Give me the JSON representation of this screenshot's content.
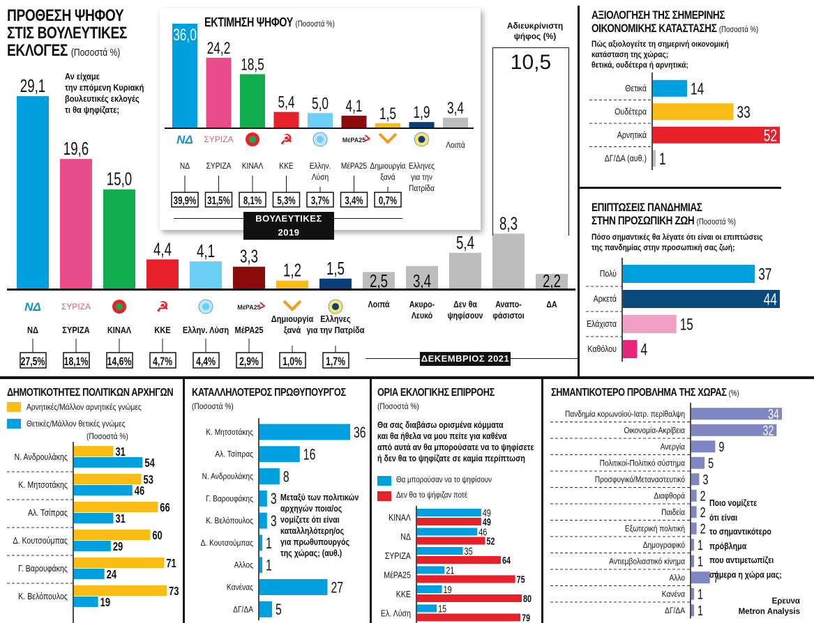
{
  "colors": {
    "nd": "#00a0e0",
    "syriza": "#ea4b8b",
    "kinal": "#10ad4f",
    "kke": "#e8202a",
    "ellyse": "#6ccff6",
    "mera25": "#8b0b0b",
    "dimiourgia": "#fcbc16",
    "ellines": "#0a3d7a",
    "grey": "#bdbdbd",
    "yellow": "#fcbc16",
    "blue": "#00a0e0",
    "red": "#e8202a",
    "darkblue": "#0a4a7a",
    "pink": "#f29fc5",
    "magenta": "#e8247f",
    "lavender": "#7f86c4"
  },
  "main": {
    "title_lines": [
      "ΠΡΟΘΕΣΗ ΨΗΦΟΥ",
      "ΣΤΙΣ ΒΟΥΛΕΥΤΙΚΕΣ",
      "ΕΚΛΟΓΕΣ"
    ],
    "unit": "(Ποσοστά %)",
    "question_lines": [
      "Αν είχαμε",
      "την επόμενη Κυριακή",
      "βουλευτικές εκλογές",
      "τι θα ψηφίζατε;"
    ],
    "period_tag": "ΔΕΚΕΜΒΡΙΟΣ 2021"
  },
  "estimate": {
    "title": "ΕΚΤΙΜΗΣΗ ΨΗΦΟΥ",
    "unit": "(Ποσοστά %)",
    "tag": "ΒΟΥΛΕΥΤΙΚΕΣ 2019"
  },
  "undecided": {
    "title_lines": [
      "Αδιευκρίνιστη",
      "ψήφος (%)"
    ],
    "value": "10,5"
  },
  "economy": {
    "title_lines": [
      "ΑΞΙΟΛΟΓΗΣΗ ΤΗΣ ΣΗΜΕΡΙΝΗΣ",
      "ΟΙΚΟΝΟΜΙΚΗΣ ΚΑΤΑΣΤΑΣΗΣ"
    ],
    "unit": "(Ποσοστά %)",
    "question_lines": [
      "Πώς αξιολογείτε τη σημερινή οικονομική",
      "κατάσταση της χώρας;",
      "θετικά, ουδέτερα ή αρνητικά;"
    ]
  },
  "pandemic": {
    "title_lines": [
      "ΕΠΙΠΤΩΣΕΙΣ ΠΑΝΔΗΜΙΑΣ",
      "ΣΤΗΝ ΠΡΟΣΩΠΙΚΗ ΖΩΗ"
    ],
    "unit": "(Ποσοστά %)",
    "question_lines": [
      "Πόσο σημαντικές θα λέγατε ότι είναι οι επιπτώσεις",
      "της πανδημίας στην προσωπική σας ζωή;"
    ]
  },
  "leaders": {
    "title": "ΔΗΜΟΤΙΚΟΤΗΤΕΣ ΠΟΛΙΤΙΚΩΝ ΑΡΧΗΓΩΝ",
    "legend": [
      "Αρνητικές/Μάλλον αρνητικές γνώμες",
      "Θετικές/Μάλλον θετικές γνώμες"
    ],
    "unit": "(Ποσοστά %)"
  },
  "pm": {
    "title": "ΚΑΤΑΛΛΗΛΟΤΕΡΟΣ ΠΡΩΘΥΠΟΥΡΓΟΣ",
    "unit": "(Ποσοστά %)",
    "question_lines": [
      "Μεταξύ των πολιτικών",
      "αρχηγών ποια/ος",
      "νομίζετε ότι είναι",
      "καταλληλότερη/ος",
      "για πρωθυπουργός",
      "της χώρας; (αυθ.)"
    ]
  },
  "limits": {
    "title": "ΟΡΙΑ ΕΚΛΟΓΙΚΗΣ ΕΠΙΡΡΟΗΣ",
    "unit": "(Ποσοστά %)",
    "question_lines": [
      "Θα σας διαβάσω ορισμένα κόμματα",
      "και θα ήθελα να μου πείτε για καθένα",
      "από αυτά αν θα μπορούσατε να το ψηφίσετε",
      "ή δεν θα το ψηφίζατε σε καμία περίπτωση"
    ],
    "legend": [
      "Θα μπορούσαν να το ψηφίσουν",
      "Δεν θα το ψήφιζαν ποτέ"
    ]
  },
  "problem": {
    "title": "ΣΗΜΑΝΤΙΚΟΤΕΡΟ ΠΡΟΒΛΗΜΑ ΤΗΣ ΧΩΡΑΣ",
    "unit": "(%)",
    "question_lines": [
      "Ποιο νομίζετε",
      "ότι είναι",
      "το σημαντικότερο",
      "πρόβλημα",
      "που αντιμετωπίζει",
      "σήμερα η χώρα μας;"
    ],
    "source_lines": [
      "Ερευνα",
      "Metron Analysis"
    ]
  },
  "chart_data": [
    {
      "id": "vote-intention",
      "type": "bar",
      "title": "ΠΡΟΘΕΣΗ ΨΗΦΟΥ ΣΤΙΣ ΒΟΥΛΕΥΤΙΚΕΣ ΕΚΛΟΓΕΣ (Ποσοστά %)",
      "categories": [
        "ΝΔ",
        "ΣΥΡΙΖΑ",
        "ΚΙΝΑΛ",
        "ΚΚΕ",
        "Ελλην. Λύση",
        "ΜέΡΑ25",
        "Δημιουργία ξανά",
        "Ελληνες για την Πατρίδα",
        "Λοιπά",
        "Ακυρο-Λευκό",
        "Δεν θα ψηφίσουν",
        "Αναποφάσιστοι",
        "ΔΑ"
      ],
      "values": [
        29.1,
        19.6,
        15.0,
        4.4,
        4.1,
        3.3,
        1.2,
        1.5,
        2.5,
        3.4,
        5.4,
        8.3,
        2.2
      ],
      "value_labels": [
        "29,1",
        "19,6",
        "15,0",
        "4,4",
        "4,1",
        "3,3",
        "1,2",
        "1,5",
        "2,5",
        "3,4",
        "5,4",
        "8,3",
        "2,2"
      ],
      "color_keys": [
        "nd",
        "syriza",
        "kinal",
        "kke",
        "ellyse",
        "mera25",
        "dimiourgia",
        "ellines",
        "grey",
        "grey",
        "grey",
        "grey",
        "grey"
      ],
      "elections_2019": [
        "27,5",
        "18,1",
        "14,6",
        "4,7",
        "4,4",
        "2,9",
        "1,0",
        "1,7"
      ],
      "ylim": [
        0,
        30
      ]
    },
    {
      "id": "vote-estimate",
      "type": "bar",
      "title": "ΕΚΤΙΜΗΣΗ ΨΗΦΟΥ (Ποσοστά %)",
      "categories": [
        "ΝΔ",
        "ΣΥΡΙΖΑ",
        "ΚΙΝΑΛ",
        "ΚΚΕ",
        "Ελλην. Λύση",
        "ΜέΡΑ25",
        "Δημιουργία ξανά",
        "Ελληνες για την Πατρίδα",
        "Λοιπά"
      ],
      "values": [
        36.0,
        24.2,
        18.5,
        5.4,
        5.0,
        4.1,
        1.5,
        1.9,
        3.4
      ],
      "value_labels": [
        "36,0",
        "24,2",
        "18,5",
        "5,4",
        "5,0",
        "4,1",
        "1,5",
        "1,9",
        "3,4"
      ],
      "color_keys": [
        "nd",
        "syriza",
        "kinal",
        "kke",
        "ellyse",
        "mera25",
        "dimiourgia",
        "ellines",
        "grey"
      ],
      "elections_2019": [
        "39,9",
        "31,5",
        "8,1",
        "5,3",
        "3,7",
        "3,4",
        "0,7"
      ],
      "ylim": [
        0,
        36
      ]
    },
    {
      "id": "economy",
      "type": "bar",
      "orientation": "horizontal",
      "categories": [
        "Θετικά",
        "Ουδέτερα",
        "Αρνητικά",
        "ΔΓ/ΔΑ (αυθ.)"
      ],
      "values": [
        14,
        33,
        52,
        1
      ],
      "color_keys": [
        "blue",
        "yellow",
        "red",
        "grey"
      ],
      "xlim": [
        0,
        52
      ]
    },
    {
      "id": "pandemic",
      "type": "bar",
      "orientation": "horizontal",
      "categories": [
        "Πολύ",
        "Αρκετά",
        "Ελάχιστα",
        "Καθόλου"
      ],
      "values": [
        37,
        44,
        15,
        4
      ],
      "color_keys": [
        "blue",
        "darkblue",
        "pink",
        "magenta"
      ],
      "xlim": [
        0,
        44
      ]
    },
    {
      "id": "leaders",
      "type": "bar",
      "orientation": "horizontal",
      "categories": [
        "Ν. Ανδρουλάκης",
        "Κ. Μητσοτάκης",
        "Αλ. Τσίπρας",
        "Δ. Κουτσούμπας",
        "Γ. Βαρουφάκης",
        "Κ. Βελόπουλος"
      ],
      "series": [
        {
          "name": "Αρνητικές/Μάλλον αρνητικές γνώμες",
          "color_key": "yellow",
          "values": [
            31,
            53,
            66,
            60,
            71,
            73
          ]
        },
        {
          "name": "Θετικές/Μάλλον θετικές γνώμες",
          "color_key": "blue",
          "values": [
            54,
            46,
            31,
            29,
            24,
            19
          ]
        }
      ],
      "xlim": [
        0,
        73
      ]
    },
    {
      "id": "pm",
      "type": "bar",
      "orientation": "horizontal",
      "categories": [
        "Κ. Μητσοτάκης",
        "Αλ. Τσίπρας",
        "Ν. Ανδρουλάκης",
        "Γ. Βαρουφάκης",
        "Κ. Βελόπουλος",
        "Δ. Κουτσούμπας",
        "Αλλος",
        "Κανένας",
        "ΔΓ/ΔΑ"
      ],
      "values": [
        36,
        16,
        8,
        3,
        3,
        1,
        1,
        27,
        5
      ],
      "xlim": [
        0,
        36
      ]
    },
    {
      "id": "limits",
      "type": "bar",
      "orientation": "horizontal",
      "categories": [
        "ΚΙΝΑΛ",
        "ΝΔ",
        "ΣΥΡΙΖΑ",
        "ΜέΡΑ25",
        "ΚΚΕ",
        "Ελ. Λύση"
      ],
      "series": [
        {
          "name": "Θα μπορούσαν να το ψηφίσουν",
          "color_key": "blue",
          "values": [
            49,
            46,
            35,
            21,
            19,
            15
          ]
        },
        {
          "name": "Δεν θα το ψήφιζαν ποτέ",
          "color_key": "red",
          "values": [
            49,
            52,
            64,
            75,
            80,
            79
          ]
        }
      ],
      "xlim": [
        0,
        80
      ]
    },
    {
      "id": "problem",
      "type": "bar",
      "orientation": "horizontal",
      "categories": [
        "Πανδημία κορωνοϊού-Ιατρ. περίθαλψη",
        "Οικονομία-Ακρίβεια",
        "Ανεργία",
        "Πολιτικοί-Πολιτικό σύστημα",
        "Προσφυγικό/Μεταναστευτικό",
        "Διαφθορά",
        "Παιδεία",
        "Εξωτερική πολιτική",
        "Δημογραφικό",
        "Αντιεμβολιαστικό κίνημα",
        "Αλλο",
        "Κανένα",
        "ΔΓ/ΔΑ"
      ],
      "values": [
        34,
        32,
        9,
        5,
        3,
        2,
        2,
        2,
        1,
        1,
        7,
        1,
        1
      ],
      "xlim": [
        0,
        34
      ]
    }
  ]
}
